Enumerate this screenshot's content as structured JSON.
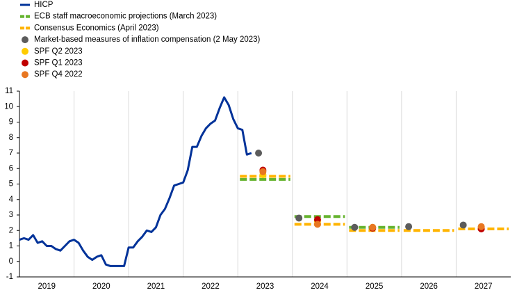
{
  "chart_data": {
    "type": "line",
    "xlim": [
      2019,
      2028
    ],
    "xticks": [
      2019,
      2020,
      2021,
      2022,
      2023,
      2024,
      2025,
      2026,
      2027
    ],
    "ylim": [
      -1,
      11
    ],
    "yticks": [
      -1,
      0,
      1,
      2,
      3,
      4,
      5,
      6,
      7,
      8,
      9,
      10,
      11
    ],
    "grid": "x",
    "legend": "top-left",
    "series": [
      {
        "name": "HICP",
        "style": "line",
        "color": "#003299",
        "x": [
          2019.0,
          2019.0833,
          2019.1667,
          2019.25,
          2019.3333,
          2019.4167,
          2019.5,
          2019.5833,
          2019.6667,
          2019.75,
          2019.8333,
          2019.9167,
          2020.0,
          2020.0833,
          2020.1667,
          2020.25,
          2020.3333,
          2020.4167,
          2020.5,
          2020.5833,
          2020.6667,
          2020.75,
          2020.8333,
          2020.9167,
          2021.0,
          2021.0833,
          2021.1667,
          2021.25,
          2021.3333,
          2021.4167,
          2021.5,
          2021.5833,
          2021.6667,
          2021.75,
          2021.8333,
          2021.9167,
          2022.0,
          2022.0833,
          2022.1667,
          2022.25,
          2022.3333,
          2022.4167,
          2022.5,
          2022.5833,
          2022.6667,
          2022.75,
          2022.8333,
          2022.9167,
          2023.0,
          2023.0833,
          2023.1667,
          2023.25
        ],
        "values": [
          1.4,
          1.5,
          1.4,
          1.7,
          1.2,
          1.3,
          1.0,
          1.0,
          0.8,
          0.7,
          1.0,
          1.3,
          1.4,
          1.2,
          0.7,
          0.3,
          0.1,
          0.3,
          0.4,
          -0.2,
          -0.3,
          -0.3,
          -0.3,
          -0.3,
          0.9,
          0.9,
          1.3,
          1.6,
          2.0,
          1.9,
          2.2,
          3.0,
          3.4,
          4.1,
          4.9,
          5.0,
          5.1,
          5.9,
          7.4,
          7.4,
          8.1,
          8.6,
          8.9,
          9.1,
          9.9,
          10.6,
          10.1,
          9.2,
          8.6,
          8.5,
          6.9,
          7.0
        ]
      },
      {
        "name": "ECB staff macroeconomic projections (March 2023)",
        "style": "dash",
        "color": "#65b32e",
        "x": [
          2023,
          2024,
          2025
        ],
        "values": [
          5.3,
          2.9,
          2.2
        ]
      },
      {
        "name": "Consensus Economics (April 2023)",
        "style": "dash",
        "color": "#ffb400",
        "x": [
          2023,
          2024,
          2025,
          2026,
          2027
        ],
        "values": [
          5.5,
          2.4,
          2.0,
          2.0,
          2.1
        ]
      },
      {
        "name": "Market-based measures of inflation compensation (2 May 2023)",
        "style": "point",
        "color": "#5c5c5c",
        "x": [
          2023.38,
          2024.12,
          2025.14,
          2026.13,
          2027.13
        ],
        "values": [
          7.0,
          2.8,
          2.2,
          2.25,
          2.35
        ]
      },
      {
        "name": "SPF Q2 2023",
        "style": "point",
        "color": "#ffcc00",
        "x": [
          2023.46,
          2024.46,
          2025.47,
          2027.46
        ],
        "values": [
          5.6,
          2.6,
          2.2,
          2.2
        ]
      },
      {
        "name": "SPF Q1 2023",
        "style": "point",
        "color": "#c00000",
        "x": [
          2023.46,
          2024.46,
          2025.47,
          2027.46
        ],
        "values": [
          5.9,
          2.7,
          2.15,
          2.1
        ]
      },
      {
        "name": "SPF Q4 2022",
        "style": "point",
        "color": "#e87722",
        "x": [
          2023.46,
          2024.46,
          2025.47,
          2027.46
        ],
        "values": [
          5.8,
          2.4,
          2.2,
          2.25
        ]
      }
    ]
  }
}
